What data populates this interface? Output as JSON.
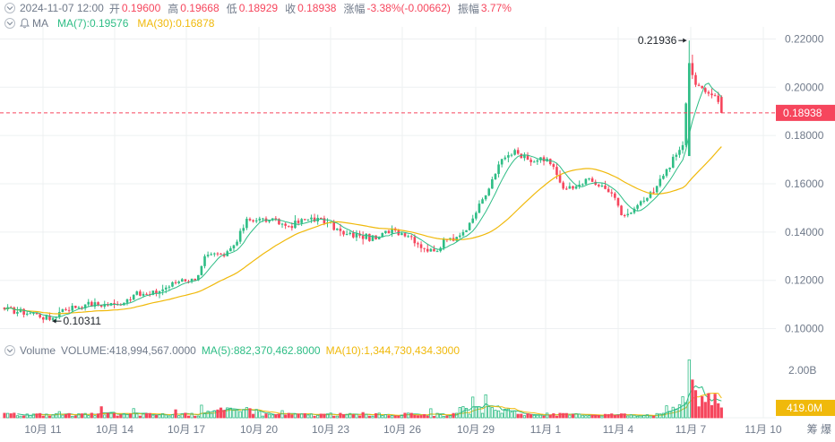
{
  "header": {
    "datetime": "2024-11-07 12:00",
    "open_label": "开",
    "open": "0.19600",
    "high_label": "高",
    "high": "0.19668",
    "low_label": "低",
    "low": "0.18929",
    "close_label": "收",
    "close": "0.18938",
    "change_label": "涨幅",
    "change": "-3.38%(-0.00662)",
    "amplitude_label": "振幅",
    "amplitude": "3.77%"
  },
  "indicators": {
    "ma_label": "MA",
    "ma7": "MA(7):0.19576",
    "ma30": "MA(30):0.16878"
  },
  "volume_header": {
    "label": "Volume",
    "volume": "VOLUME:418,994,567.0000",
    "ma5": "MA(5):882,370,462.8000",
    "ma10": "MA(10):1,344,730,434.3000"
  },
  "price_axis": {
    "ticks": [
      "0.22000",
      "0.20000",
      "0.18000",
      "0.16000",
      "0.14000",
      "0.12000",
      "0.10000"
    ],
    "current_price": "0.18938"
  },
  "volume_axis": {
    "tick": "2.00B",
    "current_volume": "419.0M"
  },
  "time_axis": [
    "10月 11",
    "10月 14",
    "10月 17",
    "10月 20",
    "10月 23",
    "10月 26",
    "10月 29",
    "11月 1",
    "11月 4",
    "11月 7",
    "11月 10"
  ],
  "right_edge_text": "筹 爆",
  "annotations": {
    "max_label": "0.21936",
    "min_label": "0.10311"
  },
  "colors": {
    "up": "#2ebd85",
    "down": "#f6465d",
    "ma7": "#2ebd85",
    "ma30": "#f0b90b",
    "grid": "#eef0f2",
    "axis_text": "#707a8a"
  },
  "chart_data": {
    "type": "candlestick",
    "interval_hours": 4,
    "start": "2024-10-09 16:00",
    "close_key_points": [
      [
        0,
        0.108
      ],
      [
        10,
        0.106
      ],
      [
        14,
        0.1036
      ],
      [
        18,
        0.108
      ],
      [
        25,
        0.11
      ],
      [
        35,
        0.11
      ],
      [
        40,
        0.114
      ],
      [
        45,
        0.114
      ],
      [
        50,
        0.117
      ],
      [
        55,
        0.1205
      ],
      [
        59,
        0.12
      ],
      [
        62,
        0.13
      ],
      [
        68,
        0.13
      ],
      [
        72,
        0.136
      ],
      [
        75,
        0.1455
      ],
      [
        82,
        0.145
      ],
      [
        88,
        0.1425
      ],
      [
        95,
        0.146
      ],
      [
        100,
        0.144
      ],
      [
        105,
        0.139
      ],
      [
        110,
        0.1385
      ],
      [
        115,
        0.137
      ],
      [
        120,
        0.1415
      ],
      [
        123,
        0.1395
      ],
      [
        126,
        0.138
      ],
      [
        130,
        0.133
      ],
      [
        133,
        0.132
      ],
      [
        137,
        0.137
      ],
      [
        140,
        0.138
      ],
      [
        142,
        0.14
      ],
      [
        146,
        0.148
      ],
      [
        150,
        0.158
      ],
      [
        153,
        0.168
      ],
      [
        158,
        0.174
      ],
      [
        162,
        0.17
      ],
      [
        166,
        0.171
      ],
      [
        170,
        0.167
      ],
      [
        173,
        0.158
      ],
      [
        176,
        0.158
      ],
      [
        180,
        0.162
      ],
      [
        184,
        0.159
      ],
      [
        188,
        0.156
      ],
      [
        191,
        0.147
      ],
      [
        194,
        0.148
      ],
      [
        198,
        0.153
      ],
      [
        201,
        0.1565
      ],
      [
        205,
        0.166
      ],
      [
        208,
        0.172
      ],
      [
        210,
        0.176
      ],
      [
        212,
        0.21
      ],
      [
        214,
        0.201
      ],
      [
        217,
        0.198
      ],
      [
        220,
        0.1965
      ],
      [
        222,
        0.1894
      ]
    ],
    "ma7_last": 0.19576,
    "ma30_last": 0.16878,
    "max": {
      "price": 0.21936
    },
    "min": {
      "price": 0.10311
    },
    "volume": {
      "last": 418994567,
      "ma5_last": 882370462.8,
      "ma10_last": 1344730434.3,
      "max_approx": 2500000000
    },
    "y_axis_range": [
      0.095,
      0.225
    ]
  }
}
